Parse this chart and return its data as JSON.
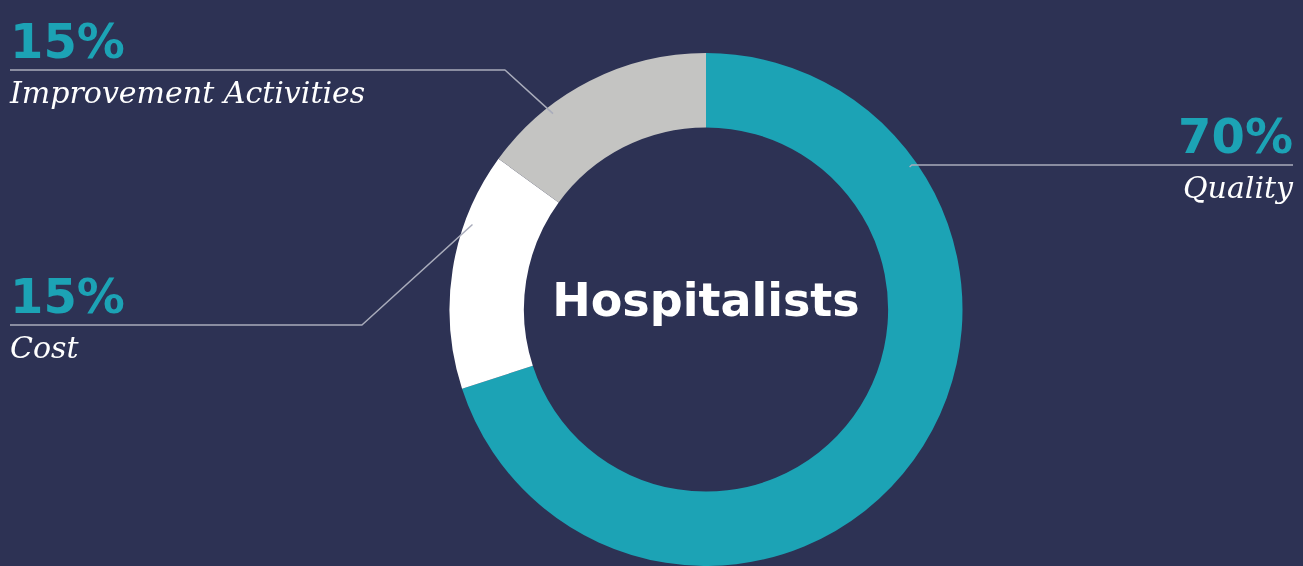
{
  "chart_data": {
    "type": "donut",
    "title": "Hospitalists",
    "categories": [
      "Quality",
      "Cost",
      "Improvement Activities"
    ],
    "values": [
      70,
      15,
      15
    ],
    "colors": [
      "#1ca3b5",
      "#ffffff",
      "#c4c4c2"
    ],
    "value_labels": [
      "70%",
      "15%",
      "15%"
    ],
    "legend": false
  }
}
